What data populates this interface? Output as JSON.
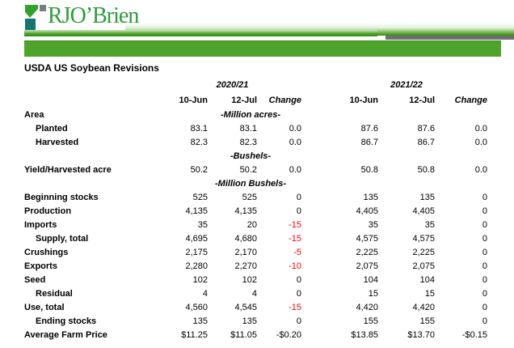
{
  "logo": {
    "text": "RJO’Brien"
  },
  "title": "USDA US Soybean Revisions",
  "colors": {
    "banner_green": "#4ea32a",
    "logo_green": "#2f9b3c",
    "logo_teal": "#177470",
    "logo_gray": "#75807e",
    "stripe_gray": "#6e6e6e",
    "negative_red": "#ff0000"
  },
  "table": {
    "group_headers": [
      "2020/21",
      "2021/22"
    ],
    "column_headers": [
      "10-Jun",
      "12-Jul",
      "Change",
      "10-Jun",
      "12-Jul",
      "Change"
    ],
    "rows": [
      {
        "label": "Area",
        "indent": 0,
        "unit": "-Million acres-",
        "values": [
          "",
          "",
          "",
          "",
          "",
          ""
        ]
      },
      {
        "label": "Planted",
        "indent": 1,
        "values": [
          "83.1",
          "83.1",
          "0.0",
          "87.6",
          "87.6",
          "0.0"
        ]
      },
      {
        "label": "Harvested",
        "indent": 1,
        "values": [
          "82.3",
          "82.3",
          "0.0",
          "86.7",
          "86.7",
          "0.0"
        ]
      },
      {
        "unit": "-Bushels-",
        "values": [
          "",
          "",
          "",
          "",
          "",
          ""
        ]
      },
      {
        "label": "Yield/Harvested acre",
        "indent": 0,
        "values": [
          "50.2",
          "50.2",
          "0.0",
          "50.8",
          "50.8",
          "0.0"
        ]
      },
      {
        "unit": "-Million Bushels-",
        "values": [
          "",
          "",
          "",
          "",
          "",
          ""
        ]
      },
      {
        "label": "Beginning stocks",
        "indent": 0,
        "values": [
          "525",
          "525",
          "0",
          "135",
          "135",
          "0"
        ]
      },
      {
        "label": "Production",
        "indent": 0,
        "values": [
          "4,135",
          "4,135",
          "0",
          "4,405",
          "4,405",
          "0"
        ]
      },
      {
        "label": "Imports",
        "indent": 0,
        "values": [
          "35",
          "20",
          "-15",
          "35",
          "35",
          "0"
        ],
        "red_cols": [
          2
        ]
      },
      {
        "label": "Supply, total",
        "indent": 1,
        "values": [
          "4,695",
          "4,680",
          "-15",
          "4,575",
          "4,575",
          "0"
        ],
        "red_cols": [
          2
        ]
      },
      {
        "label": "Crushings",
        "indent": 0,
        "values": [
          "2,175",
          "2,170",
          "-5",
          "2,225",
          "2,225",
          "0"
        ],
        "red_cols": [
          2
        ]
      },
      {
        "label": "Exports",
        "indent": 0,
        "values": [
          "2,280",
          "2,270",
          "-10",
          "2,075",
          "2,075",
          "0"
        ],
        "red_cols": [
          2
        ]
      },
      {
        "label": "Seed",
        "indent": 0,
        "values": [
          "102",
          "102",
          "0",
          "104",
          "104",
          "0"
        ]
      },
      {
        "label": "Residual",
        "indent": 1,
        "values": [
          "4",
          "4",
          "0",
          "15",
          "15",
          "0"
        ]
      },
      {
        "label": "Use, total",
        "indent": 0,
        "values": [
          "4,560",
          "4,545",
          "-15",
          "4,420",
          "4,420",
          "0"
        ],
        "red_cols": [
          2
        ]
      },
      {
        "label": "Ending stocks",
        "indent": 1,
        "values": [
          "135",
          "135",
          "0",
          "155",
          "155",
          "0"
        ]
      },
      {
        "label": "Average Farm Price",
        "indent": 0,
        "values": [
          "$11.25",
          "$11.05",
          "-$0.20",
          "$13.85",
          "$13.70",
          "-$0.15"
        ]
      }
    ]
  }
}
